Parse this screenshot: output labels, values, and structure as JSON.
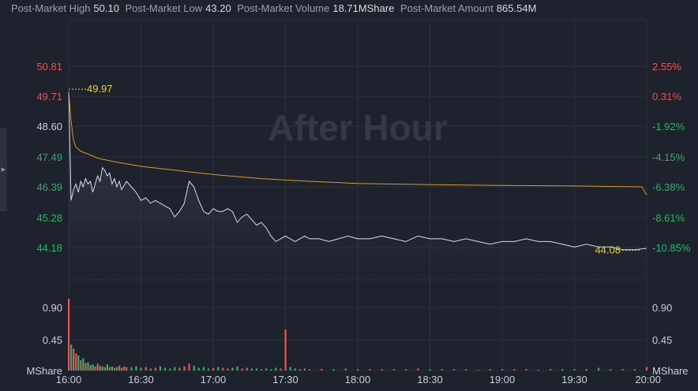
{
  "header": {
    "stats": [
      {
        "label": "Post-Market High",
        "value": "50.10"
      },
      {
        "label": "Post-Market Low",
        "value": "43.20"
      },
      {
        "label": "Post-Market Volume",
        "value": "18.71MShare"
      },
      {
        "label": "Post-Market Amount",
        "value": "865.54M"
      }
    ]
  },
  "watermark": "After Hour",
  "chart_data": {
    "type": "line",
    "session": "after-hours",
    "x_ticks": [
      "16:00",
      "16:30",
      "17:00",
      "17:30",
      "18:00",
      "18:30",
      "19:00",
      "19:30",
      "20:00"
    ],
    "y_left_ticks": [
      "50.81",
      "49.71",
      "48.60",
      "47.49",
      "46.39",
      "45.28",
      "44.18"
    ],
    "y_right_ticks": [
      "2.55%",
      "0.31%",
      "-1.92%",
      "-4.15%",
      "-6.38%",
      "-8.61%",
      "-10.85%"
    ],
    "volume_ticks": [
      "0.90",
      "0.45"
    ],
    "volume_unit": "MShare",
    "high_marker": "49.97",
    "low_marker": "44.08",
    "colors": {
      "up": "#e35656",
      "down": "#26b36a",
      "price_line": "#d8dbe2",
      "avg_line": "#d8982c",
      "marker": "#e6d23a",
      "axis_left": "#e35656",
      "axis_right": "#26b36a",
      "axis_neutral": "#c9ced8"
    },
    "series": [
      {
        "name": "price",
        "x": [
          0,
          1,
          2,
          3,
          4,
          5,
          6,
          7,
          8,
          9,
          10,
          11,
          12,
          13,
          14,
          15,
          16,
          17,
          18,
          19,
          20,
          21,
          22,
          24,
          26,
          28,
          30,
          32,
          34,
          36,
          38,
          40,
          42,
          44,
          46,
          48,
          50,
          52,
          54,
          56,
          58,
          60,
          62,
          64,
          66,
          68,
          70,
          72,
          74,
          76,
          78,
          80,
          82,
          84,
          86,
          88,
          90,
          92,
          94,
          96,
          98,
          100,
          104,
          108,
          112,
          116,
          120,
          125,
          130,
          135,
          140,
          145,
          150,
          155,
          160,
          165,
          170,
          175,
          180,
          185,
          190,
          195,
          200,
          205,
          210,
          215,
          220,
          225,
          230,
          235,
          240
        ],
        "values": [
          49.9,
          45.9,
          46.3,
          46.5,
          46.2,
          46.6,
          46.4,
          46.7,
          46.5,
          46.6,
          46.2,
          46.5,
          46.8,
          46.6,
          47.1,
          47.0,
          46.8,
          46.9,
          46.5,
          46.7,
          46.4,
          46.6,
          46.3,
          46.6,
          46.4,
          46.2,
          45.9,
          46.0,
          45.8,
          45.9,
          45.8,
          45.7,
          45.6,
          45.3,
          45.5,
          45.8,
          46.6,
          46.4,
          45.9,
          45.5,
          45.4,
          45.6,
          45.5,
          45.5,
          45.6,
          45.5,
          45.1,
          45.3,
          45.4,
          45.2,
          45.0,
          45.1,
          44.9,
          44.6,
          44.4,
          44.5,
          44.6,
          44.5,
          44.4,
          44.5,
          44.6,
          44.5,
          44.5,
          44.4,
          44.5,
          44.6,
          44.5,
          44.5,
          44.6,
          44.5,
          44.4,
          44.6,
          44.5,
          44.5,
          44.4,
          44.5,
          44.4,
          44.3,
          44.4,
          44.4,
          44.5,
          44.4,
          44.4,
          44.3,
          44.2,
          44.3,
          44.2,
          44.2,
          44.1,
          44.1,
          44.15
        ]
      },
      {
        "name": "average",
        "x": [
          0,
          1,
          2,
          3,
          5,
          8,
          12,
          20,
          30,
          45,
          60,
          80,
          100,
          120,
          150,
          180,
          210,
          238,
          240
        ],
        "values": [
          49.9,
          48.8,
          48.1,
          47.85,
          47.7,
          47.6,
          47.45,
          47.3,
          47.15,
          47.0,
          46.85,
          46.7,
          46.6,
          46.52,
          46.48,
          46.45,
          46.43,
          46.4,
          46.1
        ]
      },
      {
        "name": "volume",
        "x": [
          0,
          1,
          2,
          3,
          4,
          5,
          6,
          7,
          8,
          9,
          10,
          11,
          12,
          13,
          14,
          15,
          16,
          17,
          18,
          19,
          20,
          21,
          22,
          23,
          24,
          26,
          28,
          30,
          32,
          34,
          36,
          38,
          40,
          42,
          44,
          46,
          48,
          50,
          52,
          54,
          56,
          58,
          60,
          62,
          64,
          66,
          68,
          70,
          72,
          74,
          76,
          78,
          80,
          82,
          84,
          86,
          88,
          90,
          92,
          94,
          96,
          98,
          100,
          105,
          110,
          115,
          120,
          125,
          130,
          135,
          140,
          145,
          150,
          155,
          160,
          165,
          170,
          175,
          180,
          185,
          190,
          195,
          200,
          205,
          210,
          215,
          220,
          225,
          230,
          235,
          240
        ],
        "values": [
          1.05,
          0.38,
          0.32,
          0.25,
          0.22,
          0.15,
          0.18,
          0.11,
          0.12,
          0.08,
          0.09,
          0.06,
          0.1,
          0.07,
          0.06,
          0.05,
          0.09,
          0.05,
          0.06,
          0.04,
          0.05,
          0.07,
          0.04,
          0.06,
          0.05,
          0.05,
          0.06,
          0.04,
          0.05,
          0.03,
          0.04,
          0.06,
          0.04,
          0.03,
          0.05,
          0.04,
          0.06,
          0.1,
          0.07,
          0.04,
          0.05,
          0.03,
          0.04,
          0.05,
          0.04,
          0.03,
          0.04,
          0.06,
          0.03,
          0.04,
          0.03,
          0.03,
          0.02,
          0.03,
          0.02,
          0.04,
          0.03,
          0.6,
          0.05,
          0.03,
          0.02,
          0.03,
          0.02,
          0.02,
          0.02,
          0.03,
          0.02,
          0.02,
          0.02,
          0.02,
          0.02,
          0.03,
          0.02,
          0.02,
          0.02,
          0.02,
          0.01,
          0.02,
          0.02,
          0.02,
          0.02,
          0.01,
          0.02,
          0.02,
          0.02,
          0.02,
          0.04,
          0.02,
          0.02,
          0.02,
          0.05
        ]
      }
    ]
  }
}
